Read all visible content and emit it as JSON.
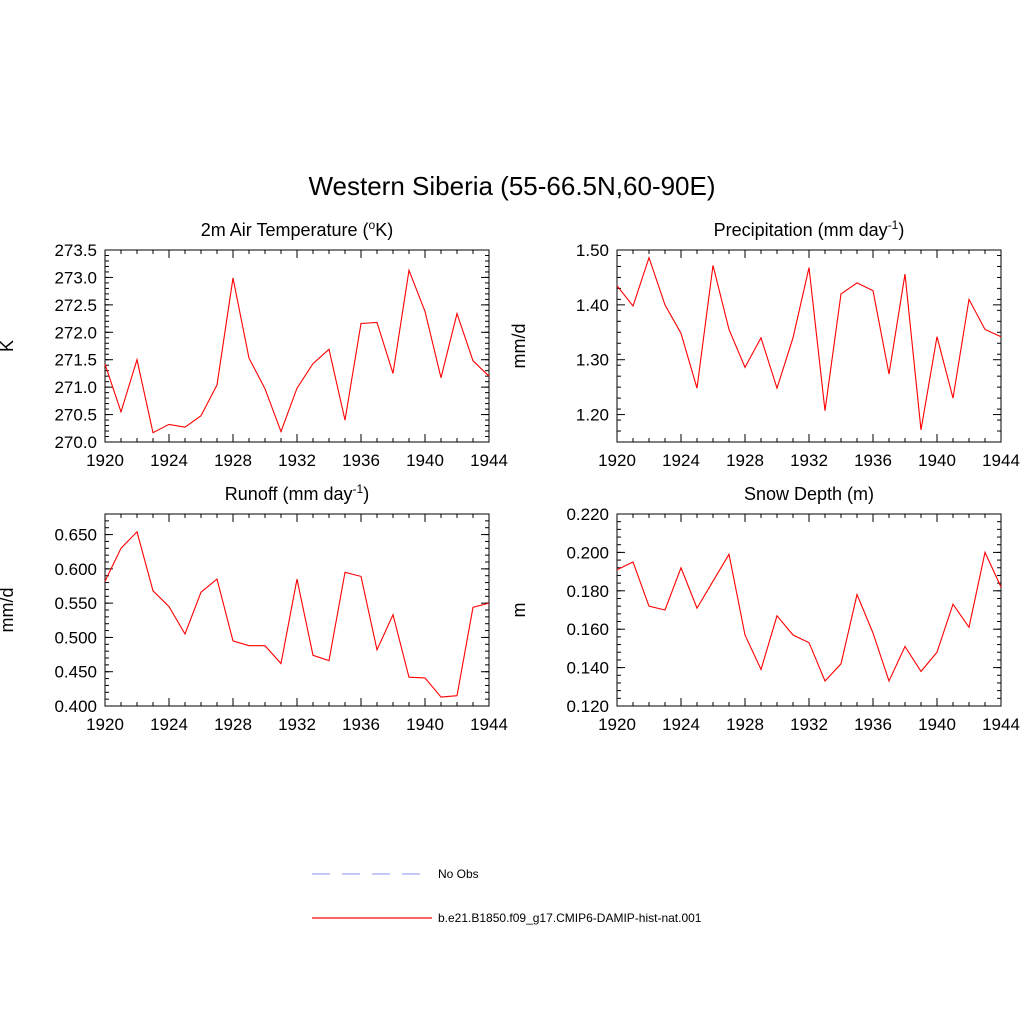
{
  "figure_title": "Western Siberia (55-66.5N,60-90E)",
  "legend": [
    {
      "label": "No Obs",
      "color": "#a0a8ee",
      "style": "dashed"
    },
    {
      "label": "b.e21.B1850.f09_g17.CMIP6-DAMIP-hist-nat.001",
      "color": "#ff0000",
      "style": "solid"
    }
  ],
  "chart_data": [
    {
      "type": "line",
      "title": "2m Air Temperature (°K)",
      "title_parts": {
        "main": "2m Air Temperature (",
        "sup": "o",
        "tail": "K)"
      },
      "xlabel": "",
      "ylabel": "K",
      "xlim": [
        1920,
        1944
      ],
      "ylim": [
        270.0,
        273.5
      ],
      "xticks": [
        "1920",
        "1924",
        "1928",
        "1932",
        "1936",
        "1940",
        "1944"
      ],
      "yticks": [
        "270.0",
        "270.5",
        "271.0",
        "271.5",
        "272.0",
        "272.5",
        "273.0",
        "273.5"
      ],
      "grid": false,
      "series": [
        {
          "color": "#ff0000",
          "x": [
            1920,
            1921,
            1922,
            1923,
            1924,
            1925,
            1926,
            1927,
            1928,
            1929,
            1930,
            1931,
            1932,
            1933,
            1934,
            1935,
            1936,
            1937,
            1938,
            1939,
            1940,
            1941,
            1942,
            1943,
            1944
          ],
          "values": [
            271.42,
            270.55,
            271.5,
            270.17,
            270.32,
            270.27,
            270.48,
            271.04,
            272.99,
            271.53,
            270.97,
            270.19,
            270.98,
            271.43,
            271.69,
            270.4,
            272.16,
            272.18,
            271.25,
            273.13,
            272.38,
            271.17,
            272.34,
            271.48,
            271.2
          ]
        }
      ]
    },
    {
      "type": "line",
      "title": "Precipitation (mm day-1)",
      "title_parts": {
        "main": "Precipitation (mm day",
        "sup": "-1",
        "tail": ")"
      },
      "xlabel": "",
      "ylabel": "mm/d",
      "xlim": [
        1920,
        1944
      ],
      "ylim": [
        1.15,
        1.5
      ],
      "xticks": [
        "1920",
        "1924",
        "1928",
        "1932",
        "1936",
        "1940",
        "1944"
      ],
      "yticks": [
        "1.20",
        "1.30",
        "1.40",
        "1.50"
      ],
      "grid": false,
      "series": [
        {
          "color": "#ff0000",
          "x": [
            1920,
            1921,
            1922,
            1923,
            1924,
            1925,
            1926,
            1927,
            1928,
            1929,
            1930,
            1931,
            1932,
            1933,
            1934,
            1935,
            1936,
            1937,
            1938,
            1939,
            1940,
            1941,
            1942,
            1943,
            1944
          ],
          "values": [
            1.435,
            1.398,
            1.486,
            1.4,
            1.348,
            1.248,
            1.472,
            1.355,
            1.286,
            1.34,
            1.248,
            1.34,
            1.468,
            1.207,
            1.42,
            1.44,
            1.426,
            1.274,
            1.456,
            1.172,
            1.342,
            1.23,
            1.41,
            1.355,
            1.342
          ]
        }
      ]
    },
    {
      "type": "line",
      "title": "Runoff (mm day-1)",
      "title_parts": {
        "main": "Runoff (mm day",
        "sup": "-1",
        "tail": ")"
      },
      "xlabel": "",
      "ylabel": "mm/d",
      "xlim": [
        1920,
        1944
      ],
      "ylim": [
        0.4,
        0.68
      ],
      "xticks": [
        "1920",
        "1924",
        "1928",
        "1932",
        "1936",
        "1940",
        "1944"
      ],
      "yticks": [
        "0.400",
        "0.450",
        "0.500",
        "0.550",
        "0.600",
        "0.650"
      ],
      "grid": false,
      "series": [
        {
          "color": "#ff0000",
          "x": [
            1920,
            1921,
            1922,
            1923,
            1924,
            1925,
            1926,
            1927,
            1928,
            1929,
            1930,
            1931,
            1932,
            1933,
            1934,
            1935,
            1936,
            1937,
            1938,
            1939,
            1940,
            1941,
            1942,
            1943,
            1944
          ],
          "values": [
            0.582,
            0.63,
            0.654,
            0.568,
            0.545,
            0.505,
            0.566,
            0.585,
            0.495,
            0.488,
            0.488,
            0.462,
            0.585,
            0.474,
            0.466,
            0.595,
            0.589,
            0.482,
            0.533,
            0.442,
            0.441,
            0.413,
            0.415,
            0.544,
            0.55
          ]
        }
      ]
    },
    {
      "type": "line",
      "title": "Snow Depth (m)",
      "title_parts": {
        "main": "Snow Depth (m)",
        "sup": "",
        "tail": ""
      },
      "xlabel": "",
      "ylabel": "m",
      "xlim": [
        1920,
        1944
      ],
      "ylim": [
        0.12,
        0.22
      ],
      "xticks": [
        "1920",
        "1924",
        "1928",
        "1932",
        "1936",
        "1940",
        "1944"
      ],
      "yticks": [
        "0.120",
        "0.140",
        "0.160",
        "0.180",
        "0.200",
        "0.220"
      ],
      "grid": false,
      "series": [
        {
          "color": "#ff0000",
          "x": [
            1920,
            1921,
            1922,
            1923,
            1924,
            1925,
            1926,
            1927,
            1928,
            1929,
            1930,
            1931,
            1932,
            1933,
            1934,
            1935,
            1936,
            1937,
            1938,
            1939,
            1940,
            1941,
            1942,
            1943,
            1944
          ],
          "values": [
            0.191,
            0.195,
            0.172,
            0.17,
            0.192,
            0.171,
            0.185,
            0.199,
            0.157,
            0.139,
            0.167,
            0.157,
            0.153,
            0.133,
            0.142,
            0.178,
            0.158,
            0.133,
            0.151,
            0.138,
            0.148,
            0.173,
            0.161,
            0.2,
            0.182
          ]
        }
      ]
    }
  ]
}
